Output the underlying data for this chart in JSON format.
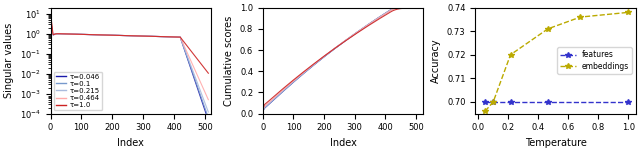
{
  "panel1": {
    "xlabel": "Index",
    "ylabel": "Singular values",
    "xlim": [
      0,
      520
    ],
    "ylim": [
      0.0001,
      20
    ],
    "taus": [
      0.046,
      0.1,
      0.215,
      0.464,
      1.0
    ],
    "colors": [
      "#1a1aaa",
      "#7799cc",
      "#aabbdd",
      "#ffaaaa",
      "#cc2222"
    ],
    "legend_labels": [
      "τ=0.046",
      "τ=0.1",
      "τ=0.215",
      "τ=0.464",
      "τ=1.0"
    ],
    "legend_loc": "lower left"
  },
  "panel2": {
    "xlabel": "Index",
    "ylabel": "Cumulative scores",
    "ylim": [
      0,
      1.0
    ],
    "xlim": [
      0,
      525
    ],
    "taus": [
      0.046,
      0.1,
      0.215,
      0.464,
      1.0
    ],
    "colors": [
      "#1a1aaa",
      "#7799cc",
      "#aabbdd",
      "#ffaaaa",
      "#cc2222"
    ]
  },
  "panel3": {
    "xlabel": "Temperature",
    "ylabel": "Accuracy",
    "ylim": [
      0.695,
      0.74
    ],
    "xlim": [
      -0.02,
      1.05
    ],
    "temperatures": [
      0.046,
      0.1,
      0.215,
      0.464,
      1.0
    ],
    "features_acc": [
      0.7,
      0.7,
      0.7,
      0.7,
      0.7
    ],
    "embeddings_acc": [
      0.696,
      0.7,
      0.72,
      0.731,
      0.736,
      0.738
    ],
    "embeddings_temps": [
      0.046,
      0.1,
      0.215,
      0.464,
      0.68,
      1.0
    ],
    "features_color": "#3333cc",
    "embeddings_color": "#bbaa00",
    "legend_loc": "center right"
  }
}
